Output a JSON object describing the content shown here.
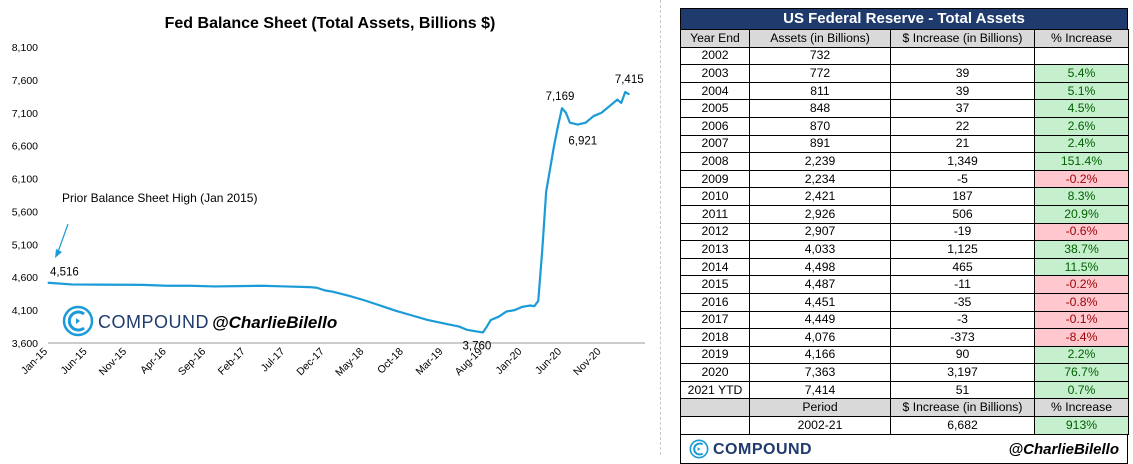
{
  "chart_data": {
    "type": "line",
    "title": "Fed Balance Sheet (Total Assets, Billions $)",
    "xlabel": "",
    "ylabel": "",
    "ylim": [
      3600,
      8100
    ],
    "yticks": [
      "8,100",
      "7,600",
      "7,100",
      "6,600",
      "6,100",
      "5,600",
      "5,100",
      "4,600",
      "4,100",
      "3,600"
    ],
    "ytick_values": [
      8100,
      7600,
      7100,
      6600,
      6100,
      5600,
      5100,
      4600,
      4100,
      3600
    ],
    "xticks": [
      "Jan-15",
      "Jun-15",
      "Nov-15",
      "Apr-16",
      "Sep-16",
      "Feb-17",
      "Jul-17",
      "Dec-17",
      "May-18",
      "Oct-18",
      "Mar-19",
      "Aug-19",
      "Jan-20",
      "Jun-20",
      "Nov-20"
    ],
    "xtick_values": [
      0,
      5,
      10,
      15,
      20,
      25,
      30,
      35,
      40,
      45,
      50,
      55,
      60,
      65,
      70
    ],
    "series": [
      {
        "name": "Total Assets",
        "color": "#1b9bd7",
        "x": [
          0,
          3,
          6,
          9,
          12,
          15,
          18,
          21,
          24,
          27,
          30,
          33,
          34,
          35,
          36,
          38,
          40,
          42,
          44,
          46,
          48,
          50,
          52,
          53,
          54,
          55,
          55.5,
          56,
          57,
          58,
          59,
          60,
          61,
          61.5,
          62,
          62.5,
          63,
          64,
          64.5,
          65,
          65.5,
          66,
          67,
          68,
          69,
          70,
          71,
          72,
          72.5,
          73,
          73.5
        ],
        "y": [
          4516,
          4490,
          4488,
          4486,
          4484,
          4470,
          4470,
          4460,
          4465,
          4470,
          4460,
          4450,
          4440,
          4400,
          4380,
          4320,
          4250,
          4170,
          4090,
          4020,
          3950,
          3900,
          3850,
          3800,
          3780,
          3760,
          3850,
          3950,
          4000,
          4080,
          4100,
          4150,
          4170,
          4160,
          4240,
          5000,
          5900,
          6600,
          6900,
          7169,
          7100,
          6950,
          6921,
          6950,
          7050,
          7100,
          7200,
          7300,
          7250,
          7415,
          7380
        ]
      }
    ],
    "annotations": [
      {
        "label": "4,516",
        "x": 0,
        "y": 4516
      },
      {
        "label": "3,760",
        "x": 55,
        "y": 3760
      },
      {
        "label": "7,169",
        "x": 65,
        "y": 7169
      },
      {
        "label": "6,921",
        "x": 67,
        "y": 6921
      },
      {
        "label": "7,415",
        "x": 73,
        "y": 7415
      },
      {
        "label": "Prior Balance Sheet High (Jan 2015)",
        "x": 1,
        "y": 5200
      }
    ]
  },
  "chart_brand": {
    "name": "COMPOUND",
    "handle": "@CharlieBilello"
  },
  "table": {
    "title": "US Federal Reserve - Total Assets",
    "headers": [
      "Year End",
      "Assets (in Billions)",
      "$ Increase (in Billions)",
      "% Increase"
    ],
    "rows": [
      {
        "year": "2002",
        "assets": "732",
        "inc": "",
        "pct": "",
        "sign": "none"
      },
      {
        "year": "2003",
        "assets": "772",
        "inc": "39",
        "pct": "5.4%",
        "sign": "pos"
      },
      {
        "year": "2004",
        "assets": "811",
        "inc": "39",
        "pct": "5.1%",
        "sign": "pos"
      },
      {
        "year": "2005",
        "assets": "848",
        "inc": "37",
        "pct": "4.5%",
        "sign": "pos"
      },
      {
        "year": "2006",
        "assets": "870",
        "inc": "22",
        "pct": "2.6%",
        "sign": "pos"
      },
      {
        "year": "2007",
        "assets": "891",
        "inc": "21",
        "pct": "2.4%",
        "sign": "pos"
      },
      {
        "year": "2008",
        "assets": "2,239",
        "inc": "1,349",
        "pct": "151.4%",
        "sign": "pos"
      },
      {
        "year": "2009",
        "assets": "2,234",
        "inc": "-5",
        "pct": "-0.2%",
        "sign": "neg"
      },
      {
        "year": "2010",
        "assets": "2,421",
        "inc": "187",
        "pct": "8.3%",
        "sign": "pos"
      },
      {
        "year": "2011",
        "assets": "2,926",
        "inc": "506",
        "pct": "20.9%",
        "sign": "pos"
      },
      {
        "year": "2012",
        "assets": "2,907",
        "inc": "-19",
        "pct": "-0.6%",
        "sign": "neg"
      },
      {
        "year": "2013",
        "assets": "4,033",
        "inc": "1,125",
        "pct": "38.7%",
        "sign": "pos"
      },
      {
        "year": "2014",
        "assets": "4,498",
        "inc": "465",
        "pct": "11.5%",
        "sign": "pos"
      },
      {
        "year": "2015",
        "assets": "4,487",
        "inc": "-11",
        "pct": "-0.2%",
        "sign": "neg"
      },
      {
        "year": "2016",
        "assets": "4,451",
        "inc": "-35",
        "pct": "-0.8%",
        "sign": "neg"
      },
      {
        "year": "2017",
        "assets": "4,449",
        "inc": "-3",
        "pct": "-0.1%",
        "sign": "neg"
      },
      {
        "year": "2018",
        "assets": "4,076",
        "inc": "-373",
        "pct": "-8.4%",
        "sign": "neg"
      },
      {
        "year": "2019",
        "assets": "4,166",
        "inc": "90",
        "pct": "2.2%",
        "sign": "pos"
      },
      {
        "year": "2020",
        "assets": "7,363",
        "inc": "3,197",
        "pct": "76.7%",
        "sign": "pos"
      },
      {
        "year": "2021 YTD",
        "assets": "7,414",
        "inc": "51",
        "pct": "0.7%",
        "sign": "pos"
      }
    ],
    "summary_headers": [
      "Period",
      "$ Increase (in Billions)",
      "% Increase"
    ],
    "summary": {
      "period": "2002-21",
      "inc": "6,682",
      "pct": "913%"
    }
  },
  "table_brand": {
    "name": "COMPOUND",
    "handle": "@CharlieBilello"
  }
}
